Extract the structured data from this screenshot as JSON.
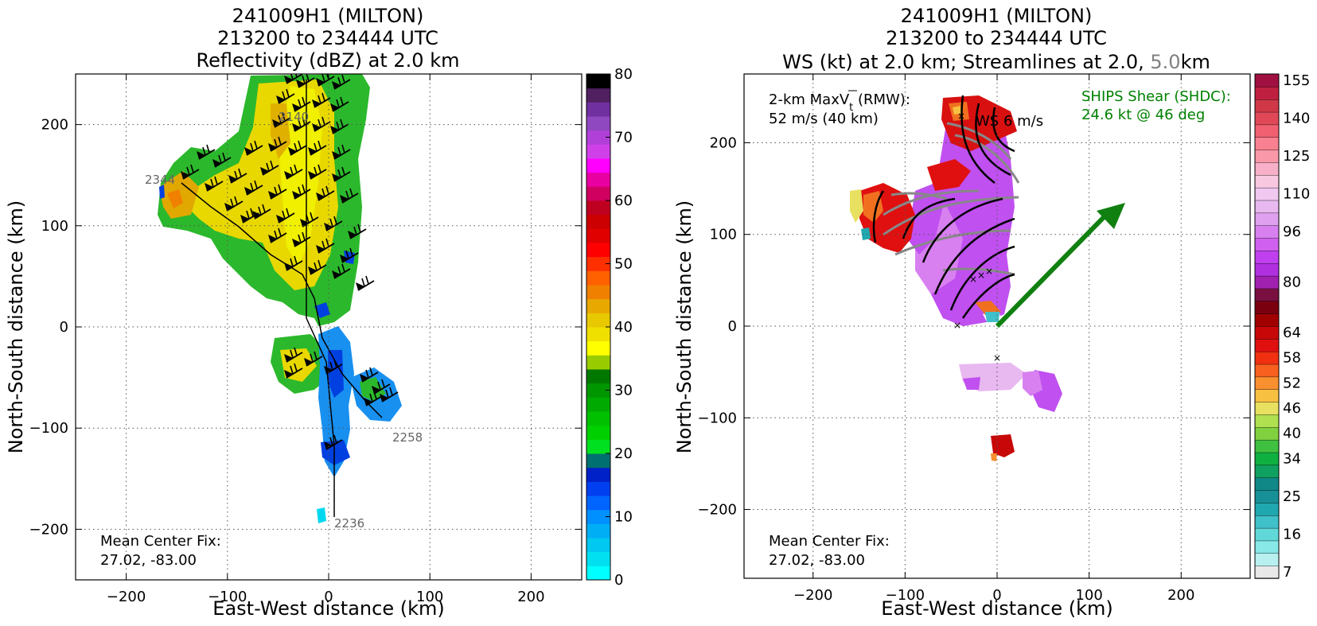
{
  "chart_data": [
    {
      "type": "heatmap",
      "title_lines": [
        "241009H1 (MILTON)",
        "213200 to 234444 UTC",
        "Reflectivity (dBZ) at 2.0 km"
      ],
      "xlabel": "East-West distance (km)",
      "ylabel": "North-South distance (km)",
      "xlim": [
        -250,
        250
      ],
      "ylim": [
        -250,
        250
      ],
      "xticks": [
        -200,
        -100,
        0,
        100,
        200
      ],
      "yticks": [
        -200,
        -100,
        0,
        100,
        200
      ],
      "xtick_labels": [
        "−200",
        "−100",
        "0",
        "100",
        "200"
      ],
      "ytick_labels": [
        "−200",
        "−100",
        "0",
        "100",
        "200"
      ],
      "grid": true,
      "colorbar": {
        "min": 0,
        "max": 80,
        "step": 2.5,
        "ticks": [
          0,
          10,
          20,
          30,
          40,
          50,
          60,
          70,
          80
        ],
        "colors": [
          "#00ffff",
          "#00e0f0",
          "#00c8f0",
          "#00aef5",
          "#0090ff",
          "#0064ff",
          "#0040f0",
          "#0020c8",
          "#007070",
          "#00e020",
          "#00d000",
          "#00c000",
          "#00aa00",
          "#009600",
          "#007800",
          "#99cc00",
          "#ffff00",
          "#f0e000",
          "#e8c800",
          "#e8a800",
          "#f08000",
          "#ff6000",
          "#ff3000",
          "#ff0000",
          "#e00000",
          "#cc0000",
          "#c00020",
          "#d00060",
          "#e800a0",
          "#ff00ff",
          "#d040e8",
          "#b040d8",
          "#9048c0",
          "#7030a0",
          "#502060",
          "#000000"
        ]
      },
      "field_labels": [
        "2140",
        "2344",
        "2258",
        "2236"
      ],
      "annotation": {
        "line1": "Mean Center Fix:",
        "line2": "27.02, -83.00"
      }
    },
    {
      "type": "heatmap",
      "title_lines": [
        "241009H1 (MILTON)",
        "213200 to 234444 UTC"
      ],
      "title3": {
        "prefix": "WS (kt) at 2.0 km; Streamlines at 2.0, ",
        "gray": "5.0",
        "suffix": "km"
      },
      "xlabel": "East-West distance (km)",
      "ylabel": "North-South distance (km)",
      "xlim": [
        -275,
        275
      ],
      "ylim": [
        -275,
        275
      ],
      "xticks": [
        -200,
        -100,
        0,
        100,
        200
      ],
      "yticks": [
        -200,
        -100,
        0,
        100,
        200
      ],
      "xtick_labels": [
        "−200",
        "−100",
        "0",
        "100",
        "200"
      ],
      "ytick_labels": [
        "−200",
        "−100",
        "0",
        "100",
        "200"
      ],
      "grid": true,
      "colorbar": {
        "levels": [
          7,
          10,
          13,
          16,
          19,
          22,
          25,
          28,
          31,
          34,
          37,
          40,
          43,
          46,
          49,
          52,
          55,
          58,
          61,
          64,
          68,
          72,
          76,
          80,
          84,
          88,
          92,
          96,
          100,
          105,
          110,
          115,
          120,
          125,
          130,
          135,
          140,
          145,
          150,
          155,
          160
        ],
        "ticks": [
          7,
          16,
          25,
          34,
          40,
          46,
          52,
          58,
          64,
          80,
          96,
          110,
          125,
          140,
          155
        ],
        "colors": [
          "#e8e8e8",
          "#b8f0f0",
          "#88e8e8",
          "#60d8d8",
          "#40c0c8",
          "#20a8b0",
          "#189098",
          "#108888",
          "#10a060",
          "#10b040",
          "#40c040",
          "#80d040",
          "#b0e050",
          "#e8e060",
          "#f8c040",
          "#f89030",
          "#f86020",
          "#f03010",
          "#e01010",
          "#c80808",
          "#a00000",
          "#7a0010",
          "#7a1040",
          "#a020b0",
          "#b030e0",
          "#c040f0",
          "#d060f0",
          "#d880f0",
          "#e0a0f0",
          "#e8b8f0",
          "#f0c8f0",
          "#f8c8e0",
          "#f8b0c8",
          "#f898a8",
          "#f88090",
          "#f06070",
          "#e04858",
          "#d03848",
          "#c02040",
          "#a01040"
        ]
      },
      "rmw_note": {
        "line1_pre": "2-km MaxV",
        "line1_sub": "t",
        "line1_post": " (RMW):",
        "line2": "52 m/s (40 km)"
      },
      "vector_label": "WS 6 m/s",
      "ships": {
        "line1": "SHIPS Shear (SHDC):",
        "line2": "24.6 kt @ 46 deg",
        "color": "#008000"
      },
      "annotation": {
        "line1": "Mean Center Fix:",
        "line2": "27.02, -83.00"
      }
    }
  ]
}
